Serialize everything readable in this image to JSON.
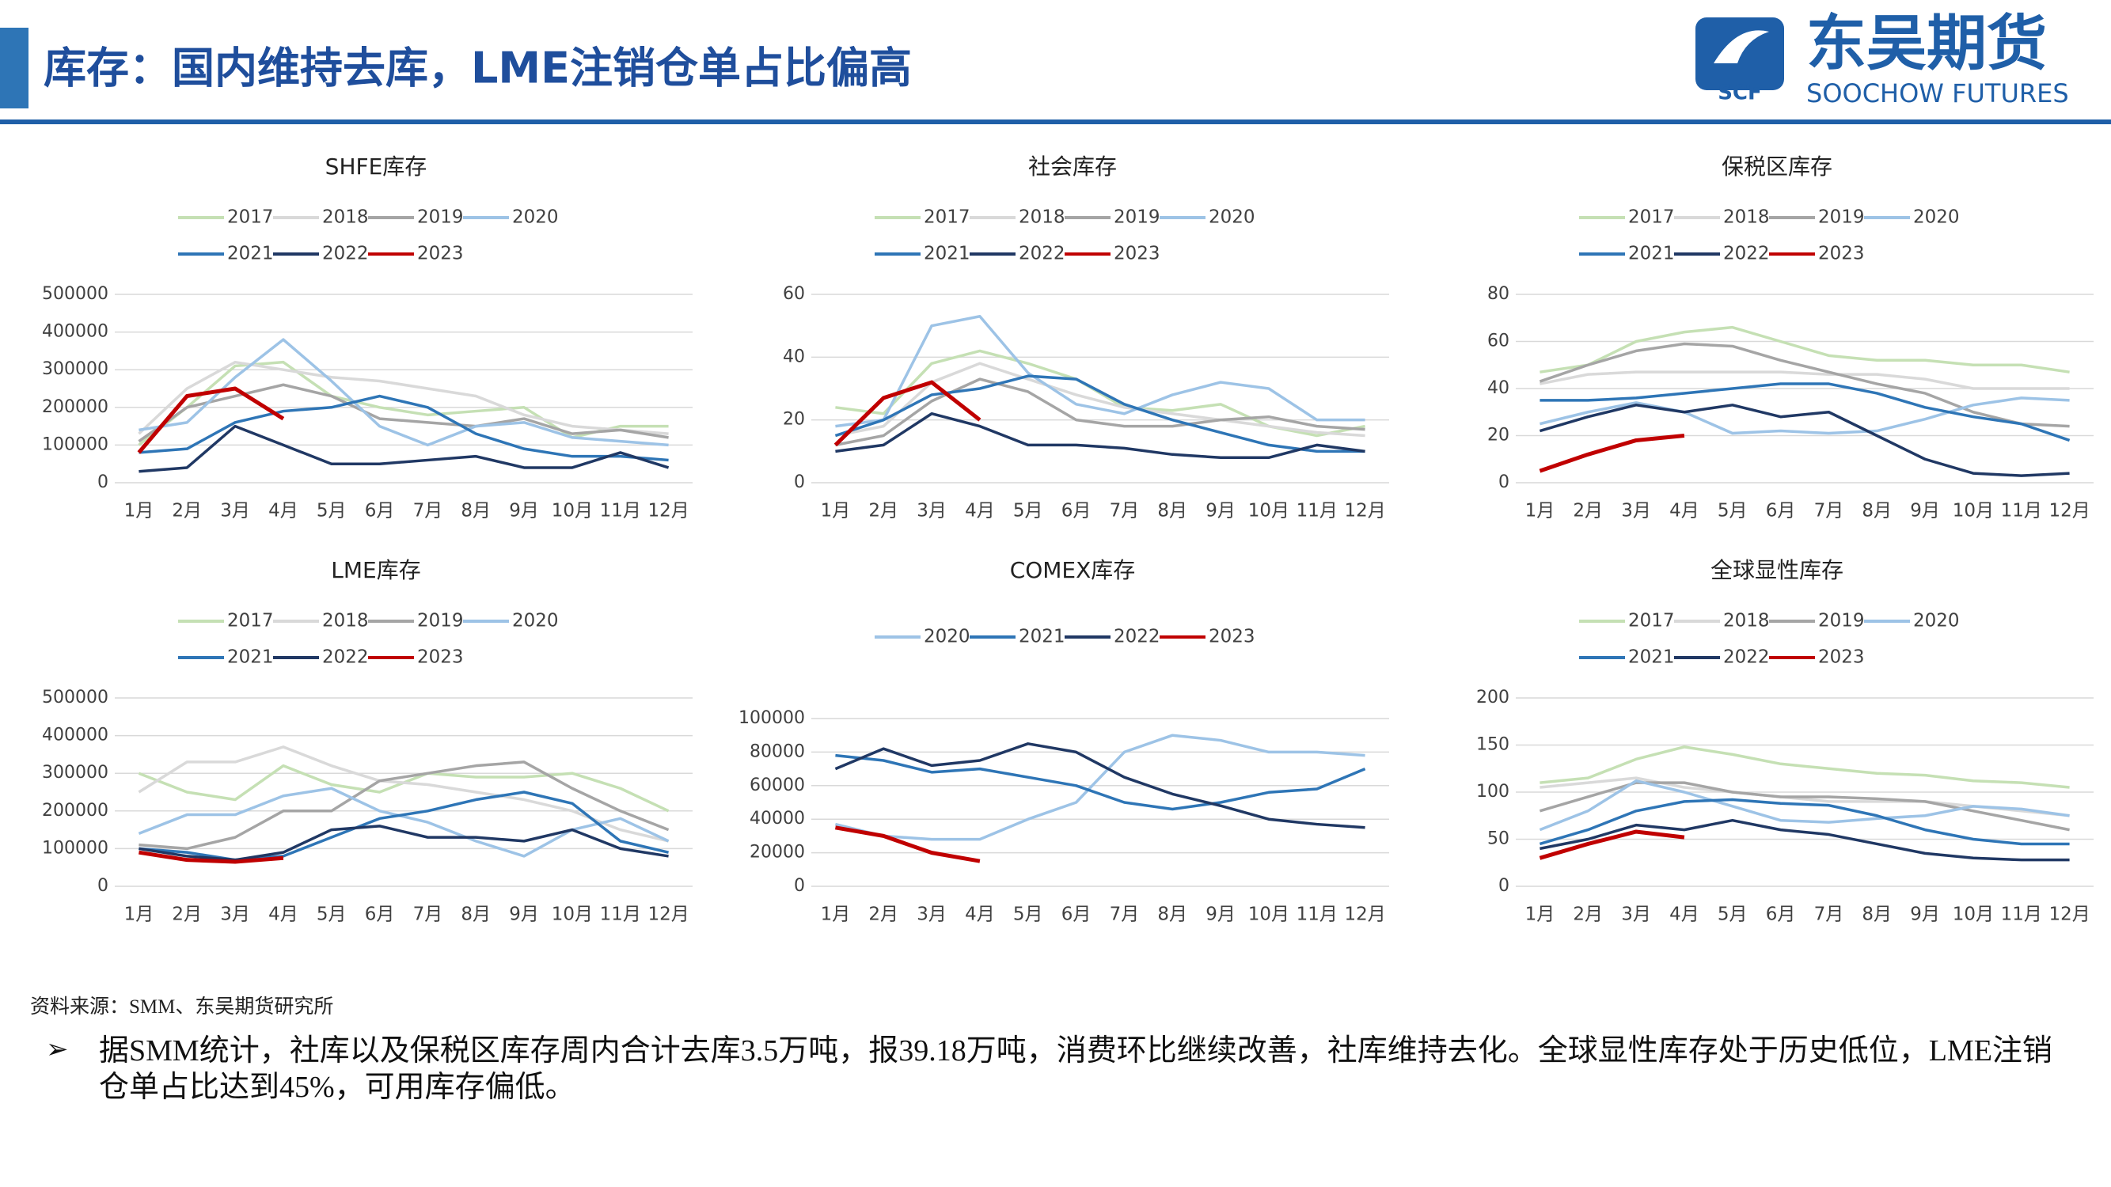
{
  "header": {
    "title": "库存：国内维持去库，LME注销仓单占比偏高",
    "logo_mark": "SCF",
    "logo_cn": "东吴期货",
    "logo_en": "SOOCHOW FUTURES"
  },
  "source": "资料来源：SMM、东吴期货研究所",
  "bullet": "据SMM统计，社库以及保税区库存周内合计去库3.5万吨，报39.18万吨，消费环比继续改善，社库维持去化。全球显性库存处于历史低位，LME注销仓单占比达到45%，可用库存偏低。",
  "chart_data": [
    {
      "type": "line",
      "title": "SHFE库存",
      "categories": [
        "1月",
        "2月",
        "3月",
        "4月",
        "5月",
        "6月",
        "7月",
        "8月",
        "9月",
        "10月",
        "11月",
        "12月"
      ],
      "ylim": [
        0,
        500000
      ],
      "yticks": [
        0,
        100000,
        200000,
        300000,
        400000,
        500000
      ],
      "grid": true,
      "series": [
        {
          "name": "2017",
          "color": "#c5e0b4",
          "values": [
            100000,
            200000,
            310000,
            320000,
            230000,
            200000,
            180000,
            190000,
            200000,
            120000,
            150000,
            150000
          ]
        },
        {
          "name": "2018",
          "color": "#d9d9d9",
          "values": [
            130000,
            250000,
            320000,
            300000,
            280000,
            270000,
            250000,
            230000,
            180000,
            150000,
            140000,
            130000
          ]
        },
        {
          "name": "2019",
          "color": "#a5a5a5",
          "values": [
            110000,
            200000,
            230000,
            260000,
            230000,
            170000,
            160000,
            150000,
            170000,
            130000,
            140000,
            120000
          ]
        },
        {
          "name": "2020",
          "color": "#9dc3e6",
          "values": [
            140000,
            160000,
            280000,
            380000,
            270000,
            150000,
            100000,
            150000,
            160000,
            120000,
            110000,
            100000
          ]
        },
        {
          "name": "2021",
          "color": "#2e75b6",
          "values": [
            80000,
            90000,
            160000,
            190000,
            200000,
            230000,
            200000,
            130000,
            90000,
            70000,
            70000,
            60000
          ]
        },
        {
          "name": "2022",
          "color": "#203864",
          "values": [
            30000,
            40000,
            150000,
            100000,
            50000,
            50000,
            60000,
            70000,
            40000,
            40000,
            80000,
            40000
          ]
        },
        {
          "name": "2023",
          "color": "#c00000",
          "values": [
            80000,
            230000,
            250000,
            170000,
            null,
            null,
            null,
            null,
            null,
            null,
            null,
            null
          ]
        }
      ]
    },
    {
      "type": "line",
      "title": "社会库存",
      "categories": [
        "1月",
        "2月",
        "3月",
        "4月",
        "5月",
        "6月",
        "7月",
        "8月",
        "9月",
        "10月",
        "11月",
        "12月"
      ],
      "ylim": [
        0,
        60
      ],
      "yticks": [
        0,
        20,
        40,
        60
      ],
      "grid": true,
      "series": [
        {
          "name": "2017",
          "color": "#c5e0b4",
          "values": [
            24,
            22,
            38,
            42,
            38,
            33,
            24,
            23,
            25,
            18,
            15,
            18
          ]
        },
        {
          "name": "2018",
          "color": "#d9d9d9",
          "values": [
            15,
            18,
            32,
            38,
            33,
            28,
            24,
            22,
            20,
            18,
            16,
            15
          ]
        },
        {
          "name": "2019",
          "color": "#a5a5a5",
          "values": [
            12,
            15,
            26,
            33,
            29,
            20,
            18,
            18,
            20,
            21,
            18,
            17
          ]
        },
        {
          "name": "2020",
          "color": "#9dc3e6",
          "values": [
            18,
            20,
            50,
            53,
            35,
            25,
            22,
            28,
            32,
            30,
            20,
            20
          ]
        },
        {
          "name": "2021",
          "color": "#2e75b6",
          "values": [
            15,
            20,
            28,
            30,
            34,
            33,
            25,
            20,
            16,
            12,
            10,
            10
          ]
        },
        {
          "name": "2022",
          "color": "#203864",
          "values": [
            10,
            12,
            22,
            18,
            12,
            12,
            11,
            9,
            8,
            8,
            12,
            10
          ]
        },
        {
          "name": "2023",
          "color": "#c00000",
          "values": [
            12,
            27,
            32,
            20,
            null,
            null,
            null,
            null,
            null,
            null,
            null,
            null
          ]
        }
      ]
    },
    {
      "type": "line",
      "title": "保税区库存",
      "categories": [
        "1月",
        "2月",
        "3月",
        "4月",
        "5月",
        "6月",
        "7月",
        "8月",
        "9月",
        "10月",
        "11月",
        "12月"
      ],
      "ylim": [
        0,
        80
      ],
      "yticks": [
        0,
        20,
        40,
        60,
        80
      ],
      "grid": true,
      "series": [
        {
          "name": "2017",
          "color": "#c5e0b4",
          "values": [
            47,
            50,
            60,
            64,
            66,
            60,
            54,
            52,
            52,
            50,
            50,
            47
          ]
        },
        {
          "name": "2018",
          "color": "#d9d9d9",
          "values": [
            42,
            46,
            47,
            47,
            47,
            47,
            46,
            46,
            44,
            40,
            40,
            40
          ]
        },
        {
          "name": "2019",
          "color": "#a5a5a5",
          "values": [
            43,
            50,
            56,
            59,
            58,
            52,
            47,
            42,
            38,
            30,
            25,
            24
          ]
        },
        {
          "name": "2020",
          "color": "#9dc3e6",
          "values": [
            25,
            30,
            34,
            30,
            21,
            22,
            21,
            22,
            27,
            33,
            36,
            35
          ]
        },
        {
          "name": "2021",
          "color": "#2e75b6",
          "values": [
            35,
            35,
            36,
            38,
            40,
            42,
            42,
            38,
            32,
            28,
            25,
            18
          ]
        },
        {
          "name": "2022",
          "color": "#203864",
          "values": [
            22,
            28,
            33,
            30,
            33,
            28,
            30,
            20,
            10,
            4,
            3,
            4
          ]
        },
        {
          "name": "2023",
          "color": "#c00000",
          "values": [
            5,
            12,
            18,
            20,
            null,
            null,
            null,
            null,
            null,
            null,
            null,
            null
          ]
        }
      ]
    },
    {
      "type": "line",
      "title": "LME库存",
      "categories": [
        "1月",
        "2月",
        "3月",
        "4月",
        "5月",
        "6月",
        "7月",
        "8月",
        "9月",
        "10月",
        "11月",
        "12月"
      ],
      "ylim": [
        0,
        500000
      ],
      "yticks": [
        0,
        100000,
        200000,
        300000,
        400000,
        500000
      ],
      "grid": true,
      "series": [
        {
          "name": "2017",
          "color": "#c5e0b4",
          "values": [
            300000,
            250000,
            230000,
            320000,
            270000,
            250000,
            300000,
            290000,
            290000,
            300000,
            260000,
            200000
          ]
        },
        {
          "name": "2018",
          "color": "#d9d9d9",
          "values": [
            250000,
            330000,
            330000,
            370000,
            320000,
            280000,
            270000,
            250000,
            230000,
            200000,
            150000,
            120000
          ]
        },
        {
          "name": "2019",
          "color": "#a5a5a5",
          "values": [
            110000,
            100000,
            130000,
            200000,
            200000,
            280000,
            300000,
            320000,
            330000,
            260000,
            200000,
            150000
          ]
        },
        {
          "name": "2020",
          "color": "#9dc3e6",
          "values": [
            140000,
            190000,
            190000,
            240000,
            260000,
            200000,
            170000,
            120000,
            80000,
            150000,
            180000,
            120000
          ]
        },
        {
          "name": "2021",
          "color": "#2e75b6",
          "values": [
            100000,
            90000,
            70000,
            80000,
            130000,
            180000,
            200000,
            230000,
            250000,
            220000,
            120000,
            90000
          ]
        },
        {
          "name": "2022",
          "color": "#203864",
          "values": [
            100000,
            80000,
            70000,
            90000,
            150000,
            160000,
            130000,
            130000,
            120000,
            150000,
            100000,
            80000
          ]
        },
        {
          "name": "2023",
          "color": "#c00000",
          "values": [
            90000,
            70000,
            65000,
            75000,
            null,
            null,
            null,
            null,
            null,
            null,
            null,
            null
          ]
        }
      ]
    },
    {
      "type": "line",
      "title": "COMEX库存",
      "categories": [
        "1月",
        "2月",
        "3月",
        "4月",
        "5月",
        "6月",
        "7月",
        "8月",
        "9月",
        "10月",
        "11月",
        "12月"
      ],
      "ylim": [
        0,
        100000
      ],
      "yticks": [
        0,
        20000,
        40000,
        60000,
        80000,
        100000
      ],
      "grid": true,
      "series": [
        {
          "name": "2020",
          "color": "#9dc3e6",
          "values": [
            37000,
            30000,
            28000,
            28000,
            40000,
            50000,
            80000,
            90000,
            87000,
            80000,
            80000,
            78000
          ]
        },
        {
          "name": "2021",
          "color": "#2e75b6",
          "values": [
            78000,
            75000,
            68000,
            70000,
            65000,
            60000,
            50000,
            46000,
            50000,
            56000,
            58000,
            70000
          ]
        },
        {
          "name": "2022",
          "color": "#203864",
          "values": [
            70000,
            82000,
            72000,
            75000,
            85000,
            80000,
            65000,
            55000,
            48000,
            40000,
            37000,
            35000
          ]
        },
        {
          "name": "2023",
          "color": "#c00000",
          "values": [
            35000,
            30000,
            20000,
            15000,
            null,
            null,
            null,
            null,
            null,
            null,
            null,
            null
          ]
        }
      ]
    },
    {
      "type": "line",
      "title": "全球显性库存",
      "categories": [
        "1月",
        "2月",
        "3月",
        "4月",
        "5月",
        "6月",
        "7月",
        "8月",
        "9月",
        "10月",
        "11月",
        "12月"
      ],
      "ylim": [
        0,
        200
      ],
      "yticks": [
        0,
        50,
        100,
        150,
        200
      ],
      "grid": true,
      "series": [
        {
          "name": "2017",
          "color": "#c5e0b4",
          "values": [
            110,
            115,
            135,
            148,
            140,
            130,
            125,
            120,
            118,
            112,
            110,
            105
          ]
        },
        {
          "name": "2018",
          "color": "#d9d9d9",
          "values": [
            105,
            110,
            115,
            105,
            100,
            95,
            90,
            90,
            90,
            85,
            80,
            75
          ]
        },
        {
          "name": "2019",
          "color": "#a5a5a5",
          "values": [
            80,
            95,
            110,
            110,
            100,
            95,
            95,
            93,
            90,
            80,
            70,
            60
          ]
        },
        {
          "name": "2020",
          "color": "#9dc3e6",
          "values": [
            60,
            80,
            112,
            100,
            85,
            70,
            68,
            72,
            75,
            85,
            82,
            75
          ]
        },
        {
          "name": "2021",
          "color": "#2e75b6",
          "values": [
            45,
            60,
            80,
            90,
            92,
            88,
            86,
            75,
            60,
            50,
            45,
            45
          ]
        },
        {
          "name": "2022",
          "color": "#203864",
          "values": [
            40,
            50,
            65,
            60,
            70,
            60,
            55,
            45,
            35,
            30,
            28,
            28
          ]
        },
        {
          "name": "2023",
          "color": "#c00000",
          "values": [
            30,
            45,
            58,
            52,
            null,
            null,
            null,
            null,
            null,
            null,
            null,
            null
          ]
        }
      ]
    }
  ]
}
